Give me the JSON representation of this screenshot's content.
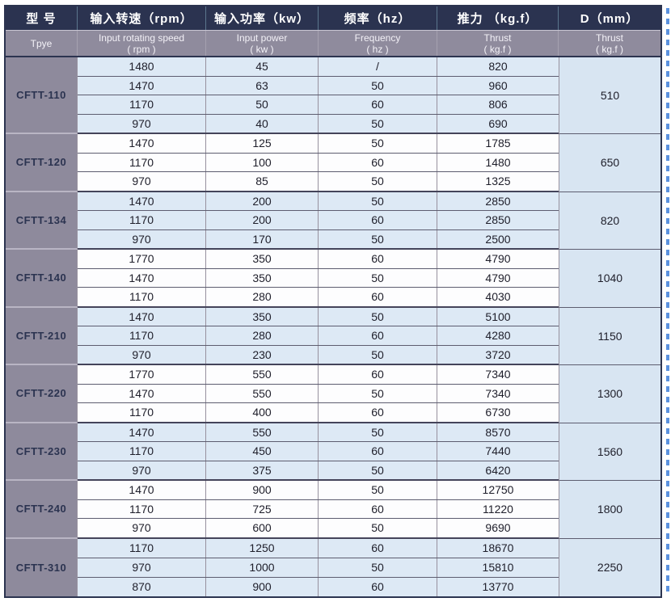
{
  "colors": {
    "header_navy": "#2b3350",
    "header_gray": "#8f8b9d",
    "type_cell_gray": "#8e8a9c",
    "row_shaded_blue": "#dde9f5",
    "row_white": "#fdfdfe",
    "d_column_blue": "#d8e5f2",
    "border_dark": "#2c3450",
    "artifact_blue": "#3f7fd9"
  },
  "table": {
    "columns": [
      {
        "zh": "型 号",
        "en1": "Tpye",
        "en2": ""
      },
      {
        "zh": "输入转速（rpm）",
        "en1": "Input rotating speed",
        "en2": "( rpm )"
      },
      {
        "zh": "输入功率（kw）",
        "en1": "Input power",
        "en2": "( kw )"
      },
      {
        "zh": "频率（hz）",
        "en1": "Frequency",
        "en2": "( hz )"
      },
      {
        "zh": "推力 （kg.f）",
        "en1": "Thrust",
        "en2": "( kg.f )"
      },
      {
        "zh": "D（mm）",
        "en1": "Thrust",
        "en2": "( kg.f )"
      }
    ],
    "groups": [
      {
        "type": "CFTT-110",
        "d": "510",
        "rows": [
          [
            "1480",
            "45",
            "/",
            "820"
          ],
          [
            "1470",
            "63",
            "50",
            "960"
          ],
          [
            "1170",
            "50",
            "60",
            "806"
          ],
          [
            "970",
            "40",
            "50",
            "690"
          ]
        ]
      },
      {
        "type": "CFTT-120",
        "d": "650",
        "rows": [
          [
            "1470",
            "125",
            "50",
            "1785"
          ],
          [
            "1170",
            "100",
            "60",
            "1480"
          ],
          [
            "970",
            "85",
            "50",
            "1325"
          ]
        ]
      },
      {
        "type": "CFTT-134",
        "d": "820",
        "rows": [
          [
            "1470",
            "200",
            "50",
            "2850"
          ],
          [
            "1170",
            "200",
            "60",
            "2850"
          ],
          [
            "970",
            "170",
            "50",
            "2500"
          ]
        ]
      },
      {
        "type": "CFTT-140",
        "d": "1040",
        "rows": [
          [
            "1770",
            "350",
            "60",
            "4790"
          ],
          [
            "1470",
            "350",
            "50",
            "4790"
          ],
          [
            "1170",
            "280",
            "60",
            "4030"
          ]
        ]
      },
      {
        "type": "CFTT-210",
        "d": "1150",
        "rows": [
          [
            "1470",
            "350",
            "50",
            "5100"
          ],
          [
            "1170",
            "280",
            "60",
            "4280"
          ],
          [
            "970",
            "230",
            "50",
            "3720"
          ]
        ]
      },
      {
        "type": "CFTT-220",
        "d": "1300",
        "rows": [
          [
            "1770",
            "550",
            "60",
            "7340"
          ],
          [
            "1470",
            "550",
            "50",
            "7340"
          ],
          [
            "1170",
            "400",
            "60",
            "6730"
          ]
        ]
      },
      {
        "type": "CFTT-230",
        "d": "1560",
        "rows": [
          [
            "1470",
            "550",
            "50",
            "8570"
          ],
          [
            "1170",
            "450",
            "60",
            "7440"
          ],
          [
            "970",
            "375",
            "50",
            "6420"
          ]
        ]
      },
      {
        "type": "CFTT-240",
        "d": "1800",
        "rows": [
          [
            "1470",
            "900",
            "50",
            "12750"
          ],
          [
            "1170",
            "725",
            "60",
            "11220"
          ],
          [
            "970",
            "600",
            "50",
            "9690"
          ]
        ]
      },
      {
        "type": "CFTT-310",
        "d": "2250",
        "rows": [
          [
            "1170",
            "1250",
            "60",
            "18670"
          ],
          [
            "970",
            "1000",
            "50",
            "15810"
          ],
          [
            "870",
            "900",
            "60",
            "13770"
          ]
        ]
      }
    ]
  }
}
